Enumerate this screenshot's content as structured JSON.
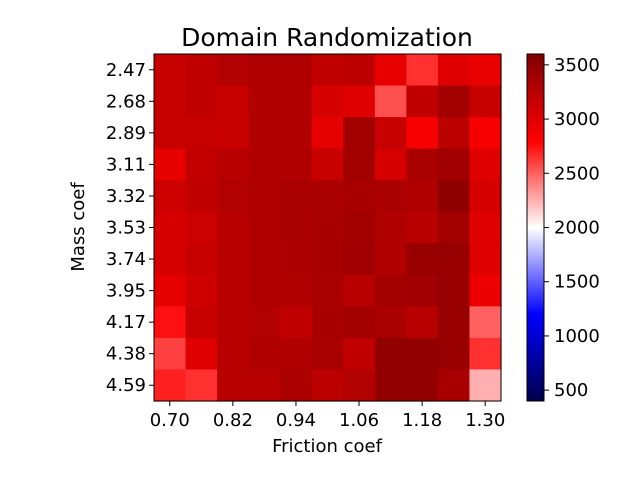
{
  "chart_data": {
    "type": "heatmap",
    "title": "Domain Randomization",
    "xlabel": "Friction coef",
    "ylabel": "Mass coef",
    "x_tick_labels": [
      "0.70",
      "0.82",
      "0.94",
      "1.06",
      "1.18",
      "1.30"
    ],
    "y_tick_labels": [
      "2.47",
      "2.68",
      "2.89",
      "3.11",
      "3.32",
      "3.53",
      "3.74",
      "3.95",
      "4.17",
      "4.38",
      "4.59"
    ],
    "colorbar": {
      "colormap": "seismic",
      "vmin": 400,
      "vmax": 3600,
      "tick_labels": [
        "500",
        "1000",
        "1500",
        "2000",
        "2500",
        "3000",
        "3500"
      ]
    },
    "values": [
      [
        3150,
        3200,
        3280,
        3300,
        3300,
        3200,
        3220,
        2950,
        2650,
        3000,
        2930
      ],
      [
        3150,
        3200,
        3150,
        3300,
        3300,
        3050,
        3000,
        2550,
        3200,
        3380,
        3150
      ],
      [
        3150,
        3160,
        3140,
        3300,
        3300,
        2950,
        3380,
        3150,
        2850,
        3230,
        2850
      ],
      [
        2950,
        3180,
        3250,
        3300,
        3300,
        3150,
        3380,
        3050,
        3330,
        3400,
        3000
      ],
      [
        3100,
        3200,
        3280,
        3300,
        3330,
        3330,
        3350,
        3330,
        3300,
        3500,
        3050
      ],
      [
        3050,
        3120,
        3250,
        3300,
        3330,
        3350,
        3380,
        3300,
        3250,
        3380,
        3000
      ],
      [
        3050,
        3150,
        3250,
        3300,
        3320,
        3350,
        3400,
        3300,
        3450,
        3450,
        3000
      ],
      [
        2950,
        3100,
        3250,
        3300,
        3300,
        3330,
        3250,
        3380,
        3400,
        3450,
        2900
      ],
      [
        2750,
        3150,
        3250,
        3280,
        3200,
        3350,
        3380,
        3330,
        3250,
        3450,
        2500
      ],
      [
        2600,
        3000,
        3250,
        3300,
        3300,
        3330,
        3200,
        3480,
        3480,
        3450,
        2650
      ],
      [
        2700,
        2650,
        3250,
        3250,
        3330,
        3230,
        3280,
        3480,
        3480,
        3350,
        2250
      ]
    ]
  }
}
